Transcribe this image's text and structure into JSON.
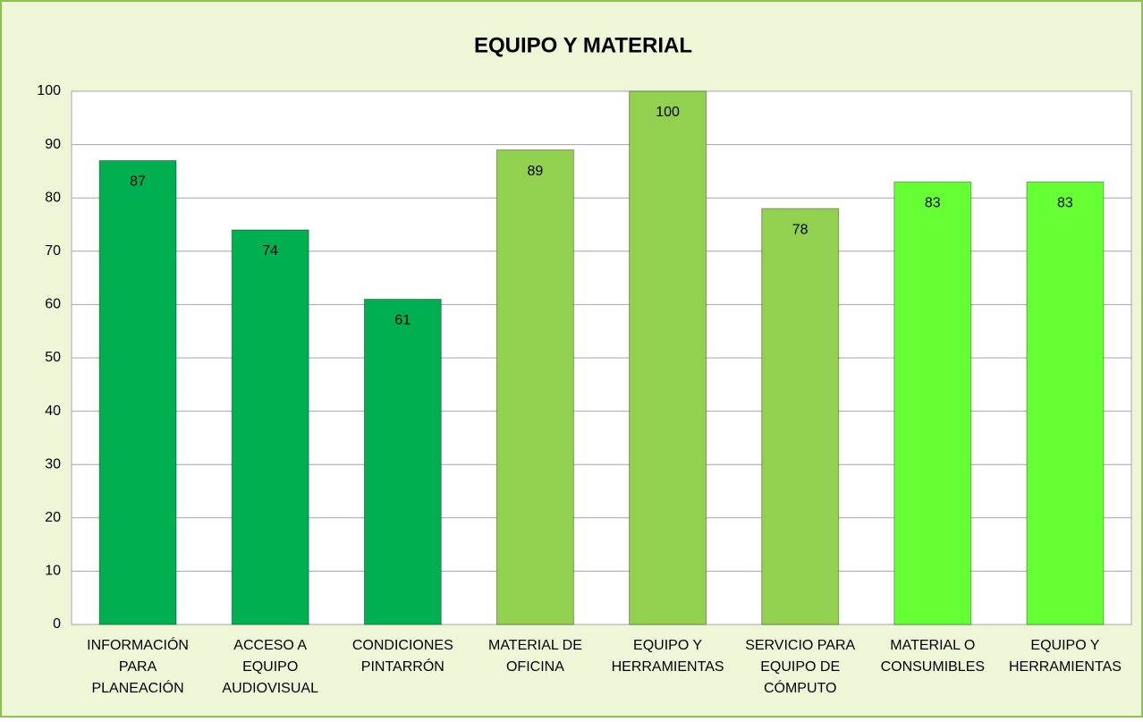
{
  "chart_data": {
    "type": "bar",
    "title": "EQUIPO Y MATERIAL",
    "categories": [
      [
        "INFORMACIÓN",
        "PARA",
        "PLANEACIÓN"
      ],
      [
        "ACCESO A",
        "EQUIPO",
        "AUDIOVISUAL"
      ],
      [
        "CONDICIONES",
        "PINTARRÓN"
      ],
      [
        "MATERIAL DE",
        "OFICINA"
      ],
      [
        "EQUIPO Y",
        "HERRAMIENTAS"
      ],
      [
        "SERVICIO PARA",
        "EQUIPO DE",
        "CÓMPUTO"
      ],
      [
        "MATERIAL O",
        "CONSUMIBLES"
      ],
      [
        "EQUIPO Y",
        "HERRAMIENTAS"
      ]
    ],
    "values": [
      87,
      74,
      61,
      89,
      100,
      78,
      83,
      83
    ],
    "colors": [
      "#00b050",
      "#00b050",
      "#00b050",
      "#92d050",
      "#92d050",
      "#92d050",
      "#66ff33",
      "#66ff33"
    ],
    "ylim": [
      0,
      100
    ],
    "yticks": [
      0,
      10,
      20,
      30,
      40,
      50,
      60,
      70,
      80,
      90,
      100
    ],
    "grid": true
  }
}
